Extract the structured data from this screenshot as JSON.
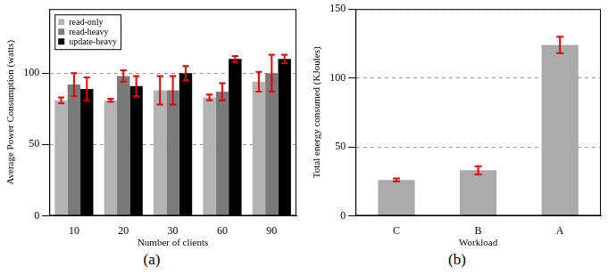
{
  "chart_data": [
    {
      "type": "bar",
      "caption": "(a)",
      "x_label": "Number of clients",
      "y_label": "Average Power Consumption (watts)",
      "categories": [
        "10",
        "20",
        "30",
        "60",
        "90"
      ],
      "series": [
        {
          "name": "read-only",
          "color": "#b3b3b3",
          "values": [
            81,
            81,
            88,
            83,
            94
          ],
          "errors": [
            2,
            1,
            10,
            2,
            7
          ]
        },
        {
          "name": "read-heavy",
          "color": "#7a7a7a",
          "values": [
            92,
            98,
            88,
            87,
            100
          ],
          "errors": [
            8,
            4,
            10,
            6,
            13
          ]
        },
        {
          "name": "update-heavy",
          "color": "#000000",
          "values": [
            89,
            91,
            100,
            110,
            110
          ],
          "errors": [
            8,
            7,
            5,
            2,
            3
          ]
        }
      ],
      "ylim": [
        0,
        145
      ],
      "yticks": [
        0,
        50,
        100
      ],
      "grid": true,
      "legend": "upper left"
    },
    {
      "type": "bar",
      "caption": "(b)",
      "x_label": "Workload",
      "y_label": "Total energy consumed (KJoules)",
      "categories": [
        "C",
        "B",
        "A"
      ],
      "values": [
        26,
        33,
        124
      ],
      "errors": [
        1,
        3,
        6
      ],
      "color": "#aaaaaa",
      "ylim": [
        0,
        150
      ],
      "yticks": [
        0,
        50,
        100,
        150
      ],
      "grid": true
    }
  ]
}
